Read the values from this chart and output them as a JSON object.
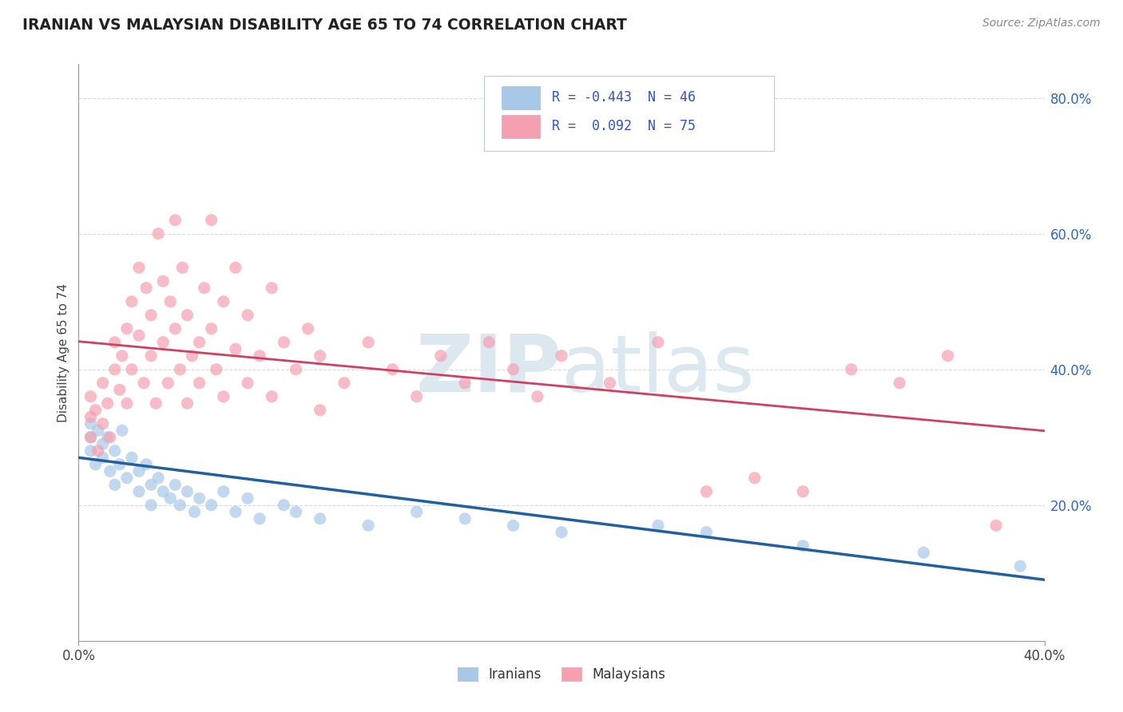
{
  "title": "IRANIAN VS MALAYSIAN DISABILITY AGE 65 TO 74 CORRELATION CHART",
  "source_text": "Source: ZipAtlas.com",
  "ylabel": "Disability Age 65 to 74",
  "xlim": [
    0.0,
    0.4
  ],
  "ylim": [
    0.0,
    0.85
  ],
  "xtick_labels": [
    "0.0%",
    "40.0%"
  ],
  "ytick_labels": [
    "20.0%",
    "40.0%",
    "60.0%",
    "80.0%"
  ],
  "ytick_values": [
    0.2,
    0.4,
    0.6,
    0.8
  ],
  "xtick_values": [
    0.0,
    0.4
  ],
  "R_iranian": -0.443,
  "N_iranian": 46,
  "R_malaysian": 0.092,
  "N_malaysian": 75,
  "iranian_color": "#a8c8e8",
  "malaysian_color": "#f4a0b0",
  "iranian_line_color": "#2060a0",
  "malaysian_line_color": "#d04060",
  "background_color": "#ffffff",
  "grid_color": "#c8d8ec",
  "watermark_color": "#dce8f0",
  "iranian_scatter": [
    [
      0.005,
      0.28
    ],
    [
      0.005,
      0.3
    ],
    [
      0.005,
      0.32
    ],
    [
      0.007,
      0.26
    ],
    [
      0.008,
      0.31
    ],
    [
      0.01,
      0.29
    ],
    [
      0.01,
      0.27
    ],
    [
      0.012,
      0.3
    ],
    [
      0.013,
      0.25
    ],
    [
      0.015,
      0.28
    ],
    [
      0.015,
      0.23
    ],
    [
      0.017,
      0.26
    ],
    [
      0.018,
      0.31
    ],
    [
      0.02,
      0.24
    ],
    [
      0.022,
      0.27
    ],
    [
      0.025,
      0.25
    ],
    [
      0.025,
      0.22
    ],
    [
      0.028,
      0.26
    ],
    [
      0.03,
      0.23
    ],
    [
      0.03,
      0.2
    ],
    [
      0.033,
      0.24
    ],
    [
      0.035,
      0.22
    ],
    [
      0.038,
      0.21
    ],
    [
      0.04,
      0.23
    ],
    [
      0.042,
      0.2
    ],
    [
      0.045,
      0.22
    ],
    [
      0.048,
      0.19
    ],
    [
      0.05,
      0.21
    ],
    [
      0.055,
      0.2
    ],
    [
      0.06,
      0.22
    ],
    [
      0.065,
      0.19
    ],
    [
      0.07,
      0.21
    ],
    [
      0.075,
      0.18
    ],
    [
      0.085,
      0.2
    ],
    [
      0.09,
      0.19
    ],
    [
      0.1,
      0.18
    ],
    [
      0.12,
      0.17
    ],
    [
      0.14,
      0.19
    ],
    [
      0.16,
      0.18
    ],
    [
      0.18,
      0.17
    ],
    [
      0.2,
      0.16
    ],
    [
      0.24,
      0.17
    ],
    [
      0.26,
      0.16
    ],
    [
      0.3,
      0.14
    ],
    [
      0.35,
      0.13
    ],
    [
      0.39,
      0.11
    ]
  ],
  "malaysian_scatter": [
    [
      0.005,
      0.3
    ],
    [
      0.005,
      0.33
    ],
    [
      0.005,
      0.36
    ],
    [
      0.007,
      0.34
    ],
    [
      0.008,
      0.28
    ],
    [
      0.01,
      0.32
    ],
    [
      0.01,
      0.38
    ],
    [
      0.012,
      0.35
    ],
    [
      0.013,
      0.3
    ],
    [
      0.015,
      0.4
    ],
    [
      0.015,
      0.44
    ],
    [
      0.017,
      0.37
    ],
    [
      0.018,
      0.42
    ],
    [
      0.02,
      0.46
    ],
    [
      0.02,
      0.35
    ],
    [
      0.022,
      0.5
    ],
    [
      0.022,
      0.4
    ],
    [
      0.025,
      0.55
    ],
    [
      0.025,
      0.45
    ],
    [
      0.027,
      0.38
    ],
    [
      0.028,
      0.52
    ],
    [
      0.03,
      0.48
    ],
    [
      0.03,
      0.42
    ],
    [
      0.032,
      0.35
    ],
    [
      0.033,
      0.6
    ],
    [
      0.035,
      0.53
    ],
    [
      0.035,
      0.44
    ],
    [
      0.037,
      0.38
    ],
    [
      0.038,
      0.5
    ],
    [
      0.04,
      0.46
    ],
    [
      0.04,
      0.62
    ],
    [
      0.042,
      0.4
    ],
    [
      0.043,
      0.55
    ],
    [
      0.045,
      0.35
    ],
    [
      0.045,
      0.48
    ],
    [
      0.047,
      0.42
    ],
    [
      0.05,
      0.44
    ],
    [
      0.05,
      0.38
    ],
    [
      0.052,
      0.52
    ],
    [
      0.055,
      0.46
    ],
    [
      0.055,
      0.62
    ],
    [
      0.057,
      0.4
    ],
    [
      0.06,
      0.36
    ],
    [
      0.06,
      0.5
    ],
    [
      0.065,
      0.43
    ],
    [
      0.065,
      0.55
    ],
    [
      0.07,
      0.38
    ],
    [
      0.07,
      0.48
    ],
    [
      0.075,
      0.42
    ],
    [
      0.08,
      0.36
    ],
    [
      0.08,
      0.52
    ],
    [
      0.085,
      0.44
    ],
    [
      0.09,
      0.4
    ],
    [
      0.095,
      0.46
    ],
    [
      0.1,
      0.34
    ],
    [
      0.1,
      0.42
    ],
    [
      0.11,
      0.38
    ],
    [
      0.12,
      0.44
    ],
    [
      0.13,
      0.4
    ],
    [
      0.14,
      0.36
    ],
    [
      0.15,
      0.42
    ],
    [
      0.16,
      0.38
    ],
    [
      0.17,
      0.44
    ],
    [
      0.18,
      0.4
    ],
    [
      0.19,
      0.36
    ],
    [
      0.2,
      0.42
    ],
    [
      0.22,
      0.38
    ],
    [
      0.24,
      0.44
    ],
    [
      0.26,
      0.22
    ],
    [
      0.28,
      0.24
    ],
    [
      0.3,
      0.22
    ],
    [
      0.32,
      0.4
    ],
    [
      0.34,
      0.38
    ],
    [
      0.36,
      0.42
    ],
    [
      0.38,
      0.17
    ]
  ]
}
